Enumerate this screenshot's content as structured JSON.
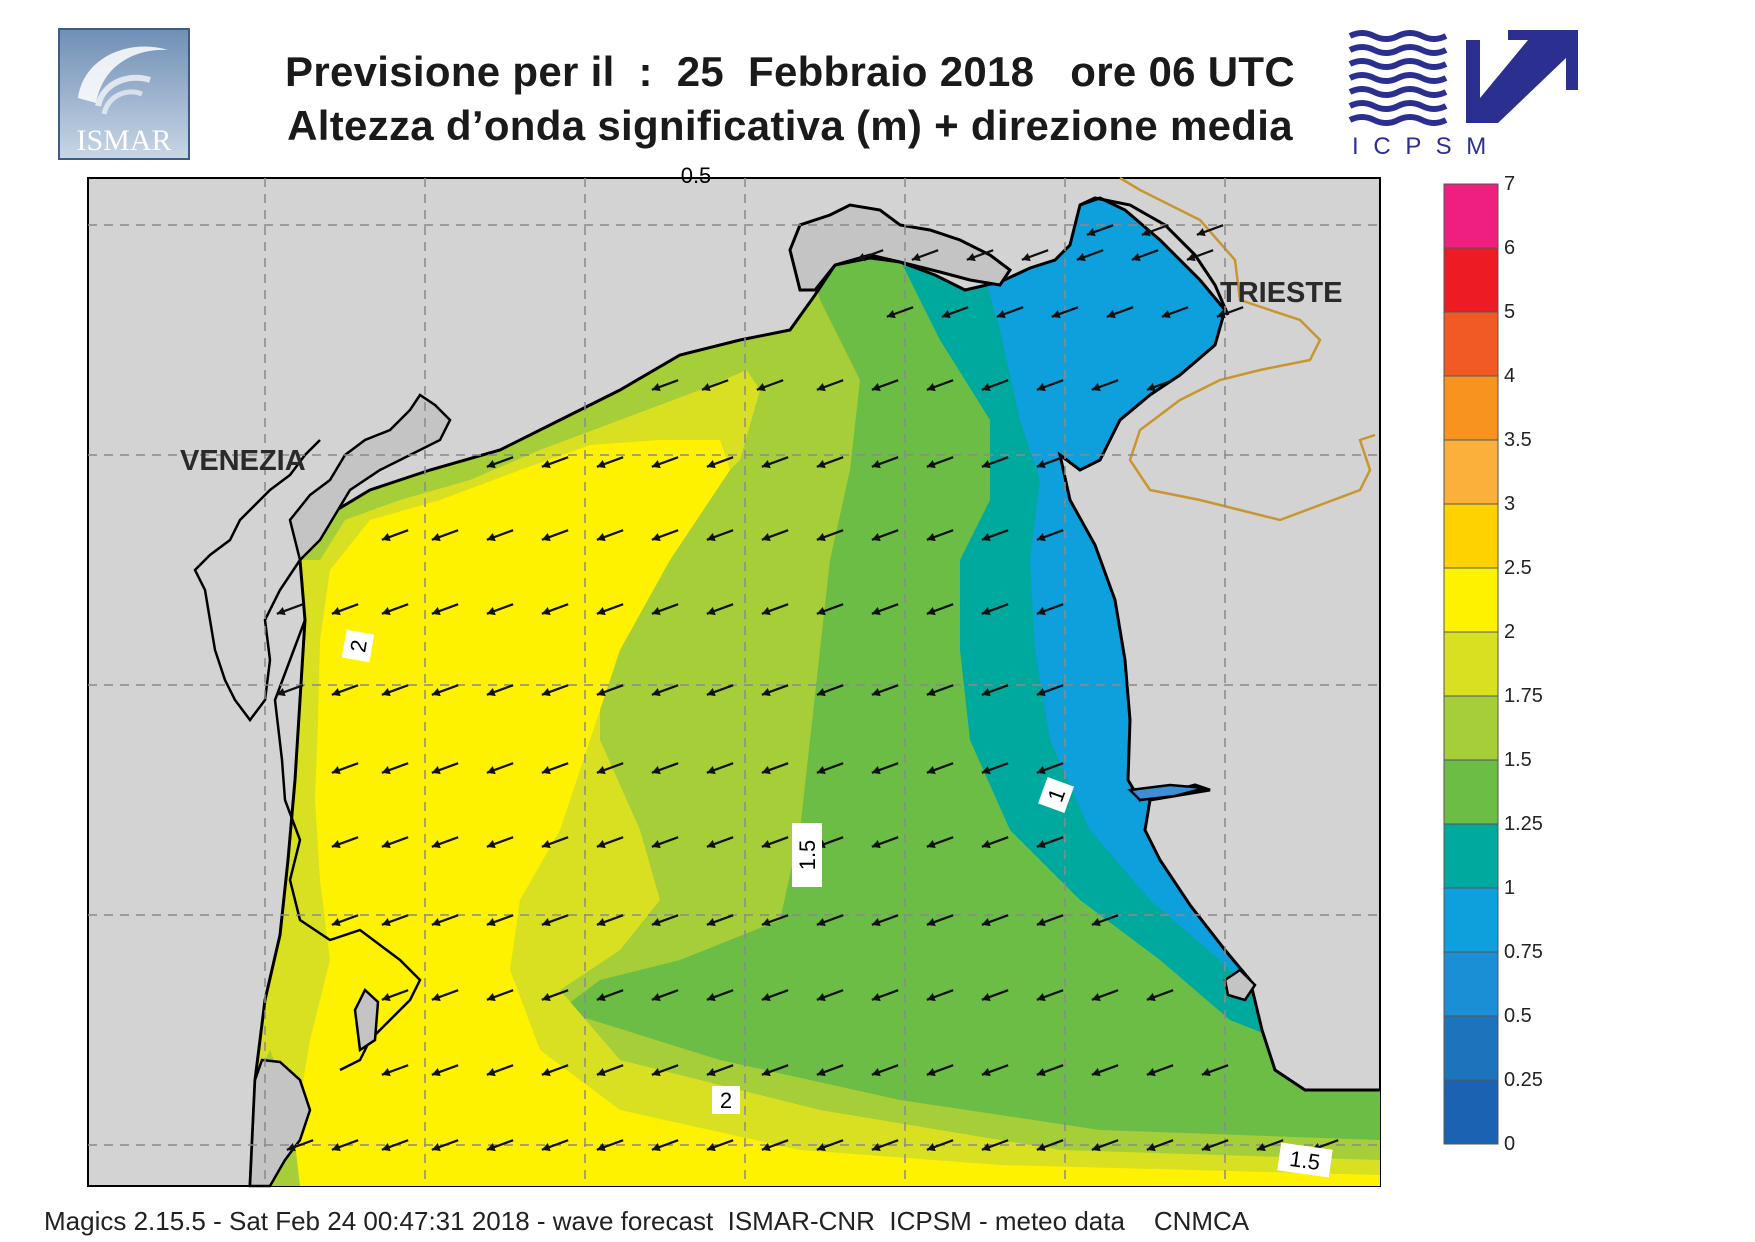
{
  "header": {
    "title_line1": "Previsione per il  :  25  Febbraio 2018   ore 06 UTC",
    "title_line2": "Altezza d’onda significativa (m) + direzione media"
  },
  "logos": {
    "ismar_text": "ISMAR",
    "icpsm_text": "I C P S M"
  },
  "map": {
    "cities": [
      {
        "name": "VENEZIA"
      },
      {
        "name": "TRIESTE"
      }
    ],
    "contour_labels": [
      "2",
      "1.5",
      "1",
      "2",
      "1.5",
      "0.5"
    ],
    "colors": {
      "land": "#d3d3d3",
      "water_gte2": "#fff200",
      "water_1_75": "#d9e021",
      "water_1_5": "#a6ce39",
      "water_1_25": "#6cbd45",
      "water_1": "#00a99d",
      "water_0_75": "#0e9fdd",
      "water_0_5": "#1b8fd6",
      "arrow": "#111111",
      "border": "#c8962e"
    },
    "mean_wave_direction": "towards south-west"
  },
  "legend": {
    "title": "",
    "levels": [
      "7",
      "6",
      "5",
      "4",
      "3.5",
      "3",
      "2.5",
      "2",
      "1.75",
      "1.5",
      "1.25",
      "1",
      "0.75",
      "0.5",
      "0.25",
      "0"
    ],
    "colors": [
      "#ee1f7f",
      "#ed1c24",
      "#f15a24",
      "#f7931e",
      "#fbb03b",
      "#fdd200",
      "#fff200",
      "#d9e021",
      "#a6ce39",
      "#6cbd45",
      "#00a99d",
      "#0e9fdd",
      "#1b8fd6",
      "#1c75bc",
      "#1b62b3"
    ]
  },
  "footer": {
    "text": "Magics 2.15.5 - Sat Feb 24 00:47:31 2018 - wave forecast  ISMAR-CNR  ICPSM - meteo data    CNMCA"
  }
}
